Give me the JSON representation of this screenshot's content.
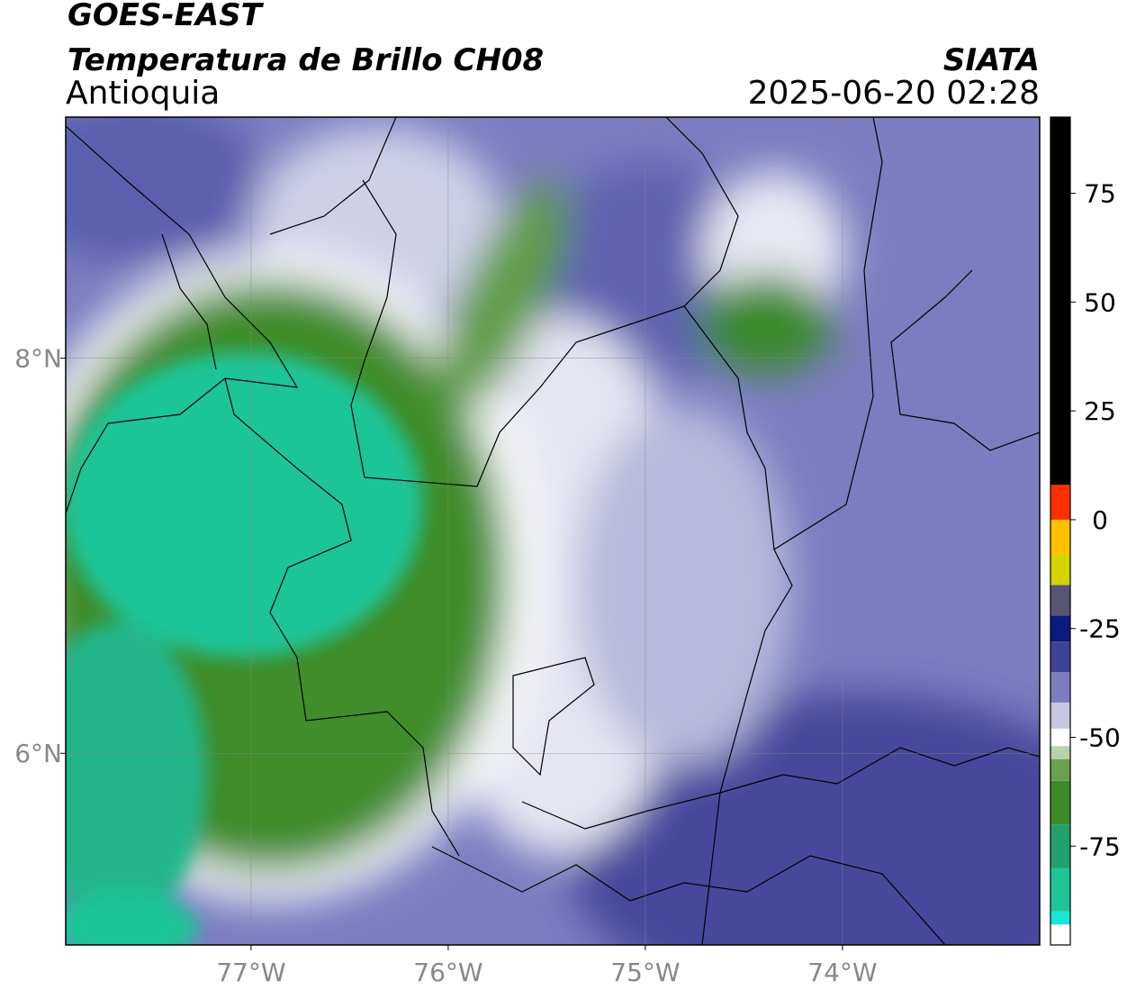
{
  "header": {
    "title": "GOES-EAST",
    "subtitle": "Temperatura de Brillo CH08",
    "region": "Antioquia",
    "source": "SIATA",
    "datetime": "2025-06-20 02:28"
  },
  "map": {
    "xlim": [
      -77.94,
      -73.0
    ],
    "ylim": [
      5.03,
      9.22
    ],
    "xticks": [
      {
        "value": -77,
        "label": "77°W"
      },
      {
        "value": -76,
        "label": "76°W"
      },
      {
        "value": -75,
        "label": "75°W"
      },
      {
        "value": -74,
        "label": "74°W"
      }
    ],
    "yticks": [
      {
        "value": 8,
        "label": "8°N"
      },
      {
        "value": 6,
        "label": "6°N"
      }
    ],
    "grid": true
  },
  "colorbar": {
    "lim": [
      -97.7,
      92.5
    ],
    "ticks": [
      75,
      50,
      25,
      0,
      -25,
      -50,
      -75
    ],
    "stops": [
      {
        "value": -97.7,
        "color": "#ffffff"
      },
      {
        "value": -93,
        "color": "#19e6d5"
      },
      {
        "value": -90,
        "color": "#1fc597"
      },
      {
        "value": -80,
        "color": "#22a06b"
      },
      {
        "value": -70,
        "color": "#3d8b27"
      },
      {
        "value": -60,
        "color": "#6aa14e"
      },
      {
        "value": -55,
        "color": "#b8d3a8"
      },
      {
        "value": -52,
        "color": "#ffffff"
      },
      {
        "value": -48,
        "color": "#c6c6e0"
      },
      {
        "value": -42,
        "color": "#7c7cc0"
      },
      {
        "value": -35,
        "color": "#3f4197"
      },
      {
        "value": -28,
        "color": "#0a1a80"
      },
      {
        "value": -22,
        "color": "#565672"
      },
      {
        "value": -15,
        "color": "#d4d400"
      },
      {
        "value": -8,
        "color": "#ffc000"
      },
      {
        "value": 0,
        "color": "#ff3000"
      },
      {
        "value": 8,
        "color": "#000000"
      }
    ]
  }
}
